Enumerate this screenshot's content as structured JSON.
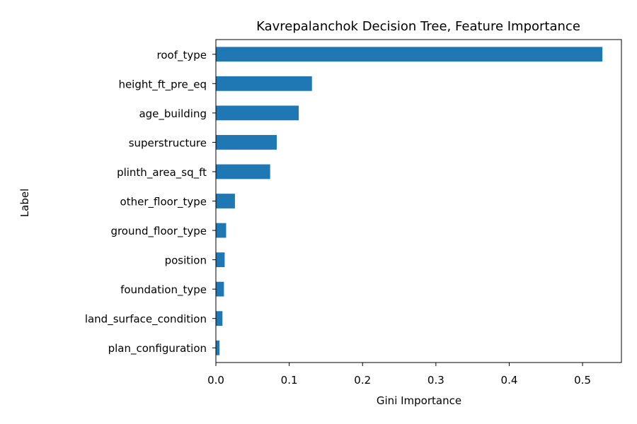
{
  "chart_data": {
    "type": "bar",
    "orientation": "horizontal",
    "title": "Kavrepalanchok Decision Tree, Feature Importance",
    "xlabel": "Gini Importance",
    "ylabel": "Label",
    "categories": [
      "roof_type",
      "height_ft_pre_eq",
      "age_building",
      "superstructure",
      "plinth_area_sq_ft",
      "other_floor_type",
      "ground_floor_type",
      "position",
      "foundation_type",
      "land_surface_condition",
      "plan_configuration"
    ],
    "values": [
      0.527,
      0.131,
      0.113,
      0.083,
      0.074,
      0.026,
      0.014,
      0.012,
      0.011,
      0.009,
      0.005
    ],
    "xlim": [
      0.0,
      0.553
    ],
    "xticks": [
      0.0,
      0.1,
      0.2,
      0.3,
      0.4,
      0.5
    ],
    "xtick_labels": [
      "0.0",
      "0.1",
      "0.2",
      "0.3",
      "0.4",
      "0.5"
    ],
    "grid": false,
    "legend": "none",
    "bar_color": "#1f77b4"
  }
}
